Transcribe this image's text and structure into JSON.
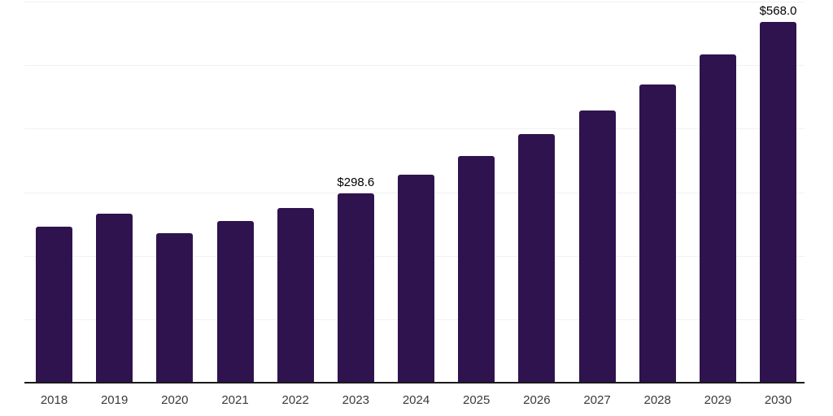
{
  "chart_data": {
    "type": "bar",
    "title": "",
    "xlabel": "",
    "ylabel": "",
    "categories": [
      "2018",
      "2019",
      "2020",
      "2021",
      "2022",
      "2023",
      "2024",
      "2025",
      "2026",
      "2027",
      "2028",
      "2029",
      "2030"
    ],
    "values": [
      245.2,
      265.7,
      235.8,
      255.0,
      275.4,
      298.6,
      327.5,
      357.0,
      391.5,
      428.6,
      469.2,
      517.2,
      568.0
    ],
    "data_labels": {
      "2023": "$298.6",
      "2030": "$568.0"
    },
    "ylim": [
      0,
      600
    ],
    "gridline_interval": 100,
    "grid": true,
    "legend": false,
    "colors": {
      "bar": "#2f134e",
      "axis_line": "#1a1a1a",
      "gridline": "#f1f1f3",
      "tick_label": "#3a3a3a",
      "data_label": "#000000",
      "background": "#ffffff"
    }
  }
}
